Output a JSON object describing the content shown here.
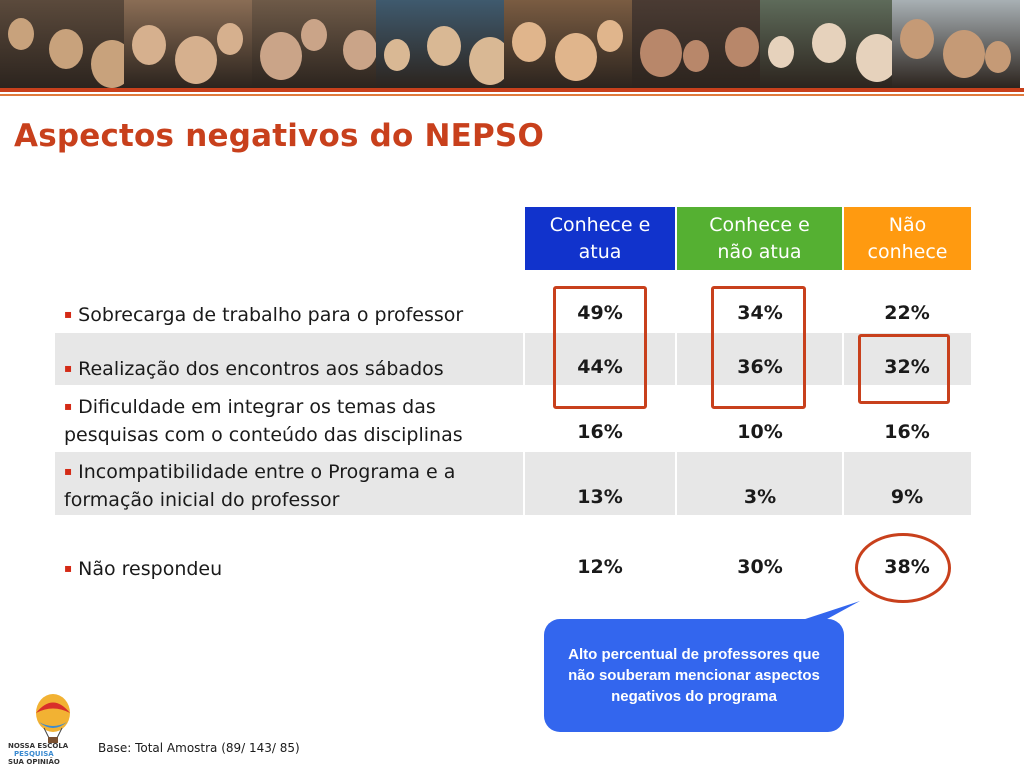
{
  "title": "Aspectos negativos do NEPSO",
  "banner": {
    "photos": [
      {
        "bg": "#5b4a3c",
        "accent": "#c8a27c"
      },
      {
        "bg": "#8a6d55",
        "accent": "#d6b08e"
      },
      {
        "bg": "#6e5a48",
        "accent": "#caa488"
      },
      {
        "bg": "#3f5a6e",
        "accent": "#d9b894"
      },
      {
        "bg": "#7a5c42",
        "accent": "#e0b58c"
      },
      {
        "bg": "#4a3b33",
        "accent": "#b8876a"
      },
      {
        "bg": "#5e6b5a",
        "accent": "#e6d2bc"
      },
      {
        "bg": "#a8b0b4",
        "accent": "#c59a76"
      },
      {
        "bg": "#8b7462",
        "accent": "#d8b496"
      },
      {
        "bg": "#6a5a4f",
        "accent": "#d0ad90"
      }
    ]
  },
  "table": {
    "headers": [
      {
        "label": "Conhece e\natua",
        "color": "#1133cc"
      },
      {
        "label": "Conhece e\nnão atua",
        "color": "#55b032"
      },
      {
        "label": "Não\nconhece",
        "color": "#ff9a10"
      }
    ],
    "rows": [
      {
        "label": "Sobrecarga de trabalho para o professor",
        "values": [
          "49%",
          "34%",
          "22%"
        ]
      },
      {
        "label": "Realização dos encontros aos sábados",
        "values": [
          "44%",
          "36%",
          "32%"
        ]
      },
      {
        "label": "Dificuldade em integrar os temas das pesquisas com o conteúdo das disciplinas",
        "values": [
          "16%",
          "10%",
          "16%"
        ]
      },
      {
        "label": "Incompatibilidade entre o Programa e a formação inicial do professor",
        "values": [
          "13%",
          "3%",
          "9%"
        ]
      },
      {
        "label": "Não respondeu",
        "values": [
          "12%",
          "30%",
          "38%"
        ]
      }
    ],
    "bullet": "▪"
  },
  "callout": {
    "text": "Alto percentual de professores que não souberam mencionar aspectos negativos do programa"
  },
  "footer": {
    "base": "Base: Total Amostra (89/ 143/ 85)",
    "logo_lines": [
      "NOSSA ESCOLA",
      "PESQUISA",
      "SUA OPINIÃO"
    ]
  },
  "colors": {
    "accent": "#c8401c",
    "callout": "#3366ee",
    "row_shade": "#e7e7e7"
  }
}
